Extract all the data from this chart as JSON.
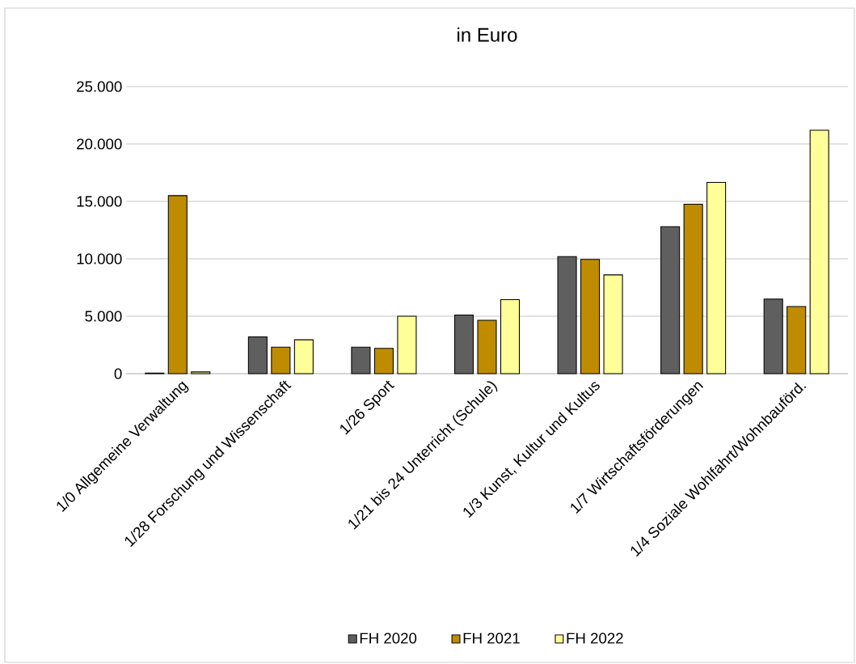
{
  "chart_data": {
    "type": "bar",
    "title": "in Euro",
    "categories": [
      "1/0 Allgemeine Verwaltung",
      "1/28 Forschung und Wissenschaft",
      "1/26 Sport",
      "1/21 bis 24 Unterricht (Schule)",
      "1/3 Kunst, Kultur und Kultus",
      "1/7 Wirtschaftsförderungen",
      "1/4 Soziale Wohlfahrt/Wohnbauförd."
    ],
    "series": [
      {
        "name": "FH 2020",
        "color": "#5f5f5f",
        "values": [
          50,
          3200,
          2300,
          5100,
          10200,
          12800,
          6500
        ]
      },
      {
        "name": "FH 2021",
        "color": "#bf8c00",
        "values": [
          15500,
          2300,
          2200,
          4650,
          9950,
          14750,
          5850
        ]
      },
      {
        "name": "FH 2022",
        "color": "#ffff99",
        "values": [
          150,
          2950,
          5000,
          6450,
          8600,
          16650,
          21200
        ]
      }
    ],
    "ylim": [
      0,
      25000
    ],
    "yticks": [
      {
        "value": 0,
        "label": "0"
      },
      {
        "value": 5000,
        "label": "5.000"
      },
      {
        "value": 10000,
        "label": "10.000"
      },
      {
        "value": 15000,
        "label": "15.000"
      },
      {
        "value": 20000,
        "label": "20.000"
      },
      {
        "value": 25000,
        "label": "25.000"
      }
    ],
    "grid": "y",
    "legend": "bottom"
  }
}
